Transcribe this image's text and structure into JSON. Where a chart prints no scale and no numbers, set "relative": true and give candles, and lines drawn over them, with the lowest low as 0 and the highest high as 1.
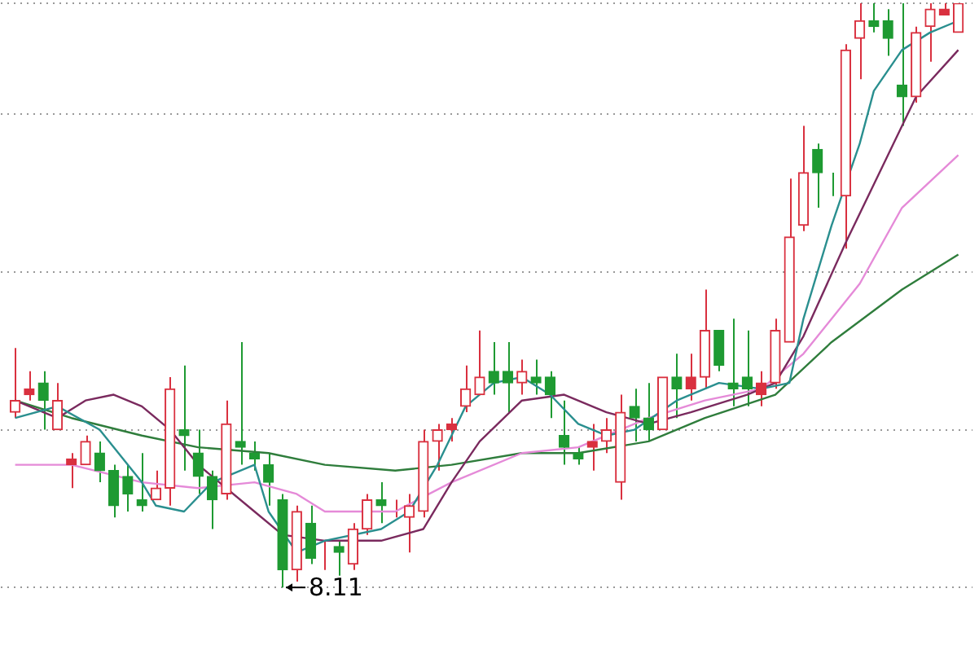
{
  "chart_data": {
    "type": "candlestick",
    "relative": true,
    "legend": false,
    "grid": "y",
    "categories": [
      null,
      null,
      null,
      null,
      null,
      null,
      null,
      null,
      null,
      null,
      null,
      null,
      null,
      null,
      null,
      null,
      null,
      null,
      null,
      null,
      null,
      null,
      null,
      null,
      null,
      null,
      null,
      null,
      null,
      null,
      null,
      null,
      null,
      null,
      null,
      null,
      null,
      null,
      null,
      null,
      null,
      null,
      null,
      null,
      null,
      null,
      null,
      null,
      null,
      null,
      null,
      null,
      null,
      null,
      null,
      null,
      null,
      null,
      null,
      null,
      null,
      null,
      null,
      null,
      null,
      null,
      null,
      null
    ],
    "ohlc": [
      [
        0.3,
        0.41,
        0.29,
        0.32
      ],
      [
        0.33,
        0.37,
        0.32,
        0.34
      ],
      [
        0.35,
        0.37,
        0.27,
        0.32
      ],
      [
        0.27,
        0.35,
        0.27,
        0.32
      ],
      [
        0.21,
        0.23,
        0.17,
        0.22
      ],
      [
        0.21,
        0.26,
        0.21,
        0.25
      ],
      [
        0.23,
        0.25,
        0.18,
        0.2
      ],
      [
        0.2,
        0.21,
        0.12,
        0.14
      ],
      [
        0.19,
        0.21,
        0.13,
        0.16
      ],
      [
        0.15,
        0.23,
        0.13,
        0.14
      ],
      [
        0.15,
        0.2,
        0.15,
        0.17
      ],
      [
        0.17,
        0.36,
        0.14,
        0.34
      ],
      [
        0.27,
        0.38,
        0.2,
        0.26
      ],
      [
        0.23,
        0.27,
        0.16,
        0.19
      ],
      [
        0.19,
        0.2,
        0.1,
        0.15
      ],
      [
        0.16,
        0.32,
        0.15,
        0.28
      ],
      [
        0.25,
        0.42,
        0.21,
        0.24
      ],
      [
        0.23,
        0.25,
        0.2,
        0.22
      ],
      [
        0.21,
        0.23,
        0.14,
        0.18
      ],
      [
        0.15,
        0.16,
        0,
        0.03
      ],
      [
        0.03,
        0.14,
        0.01,
        0.13
      ],
      [
        0.11,
        0.14,
        0.04,
        0.05
      ],
      [
        0.05,
        0.08,
        0.03,
        0.05
      ],
      [
        0.07,
        0.08,
        0.02,
        0.06
      ],
      [
        0.04,
        0.11,
        0.03,
        0.1
      ],
      [
        0.1,
        0.16,
        0.09,
        0.15
      ],
      [
        0.15,
        0.18,
        0.11,
        0.14
      ],
      [
        0.14,
        0.15,
        0.12,
        0.14
      ],
      [
        0.12,
        0.16,
        0.06,
        0.14
      ],
      [
        0.13,
        0.27,
        0.12,
        0.25
      ],
      [
        0.25,
        0.28,
        0.2,
        0.27
      ],
      [
        0.27,
        0.29,
        0.25,
        0.28
      ],
      [
        0.31,
        0.38,
        0.3,
        0.34
      ],
      [
        0.33,
        0.44,
        0.33,
        0.36
      ],
      [
        0.37,
        0.42,
        0.33,
        0.35
      ],
      [
        0.37,
        0.42,
        0.3,
        0.35
      ],
      [
        0.35,
        0.39,
        0.33,
        0.37
      ],
      [
        0.36,
        0.39,
        0.33,
        0.35
      ],
      [
        0.36,
        0.37,
        0.29,
        0.33
      ],
      [
        0.26,
        0.32,
        0.21,
        0.24
      ],
      [
        0.23,
        0.24,
        0.21,
        0.22
      ],
      [
        0.24,
        0.28,
        0.2,
        0.25
      ],
      [
        0.25,
        0.29,
        0.23,
        0.27
      ],
      [
        0.18,
        0.33,
        0.15,
        0.3
      ],
      [
        0.31,
        0.34,
        0.25,
        0.29
      ],
      [
        0.29,
        0.35,
        0.25,
        0.27
      ],
      [
        0.27,
        0.36,
        0.27,
        0.36
      ],
      [
        0.36,
        0.4,
        0.29,
        0.34
      ],
      [
        0.34,
        0.4,
        0.32,
        0.36
      ],
      [
        0.36,
        0.51,
        0.34,
        0.44
      ],
      [
        0.44,
        0.44,
        0.37,
        0.38
      ],
      [
        0.35,
        0.46,
        0.31,
        0.34
      ],
      [
        0.36,
        0.44,
        0.31,
        0.34
      ],
      [
        0.33,
        0.37,
        0.31,
        0.35
      ],
      [
        0.35,
        0.46,
        0.34,
        0.44
      ],
      [
        0.42,
        0.7,
        0.42,
        0.6
      ],
      [
        0.62,
        0.79,
        0.61,
        0.71
      ],
      [
        0.75,
        0.76,
        0.65,
        0.71
      ],
      [
        0.7,
        0.71,
        0.67,
        0.7
      ],
      [
        0.67,
        0.93,
        0.58,
        0.92
      ],
      [
        0.94,
        1,
        0.87,
        0.97
      ],
      [
        0.97,
        1,
        0.95,
        0.96
      ],
      [
        0.97,
        0.99,
        0.91,
        0.94
      ],
      [
        0.86,
        1,
        0.79,
        0.84
      ],
      [
        0.84,
        0.96,
        0.83,
        0.95
      ],
      [
        0.96,
        1,
        0.9,
        0.99
      ],
      [
        0.98,
        1,
        0.98,
        0.99
      ],
      [
        0.95,
        1,
        0.95,
        1
      ]
    ],
    "colors": [
      "#d9303f",
      "#d9303f",
      "#1e9a32",
      "#d9303f",
      "#d9303f",
      "#d9303f",
      "#1e9a32",
      "#1e9a32",
      "#1e9a32",
      "#1e9a32",
      "#d9303f",
      "#d9303f",
      "#1e9a32",
      "#1e9a32",
      "#1e9a32",
      "#d9303f",
      "#1e9a32",
      "#1e9a32",
      "#1e9a32",
      "#1e9a32",
      "#d9303f",
      "#1e9a32",
      "#d9303f",
      "#1e9a32",
      "#d9303f",
      "#d9303f",
      "#1e9a32",
      "#d9303f",
      "#d9303f",
      "#d9303f",
      "#d9303f",
      "#d9303f",
      "#d9303f",
      "#d9303f",
      "#1e9a32",
      "#1e9a32",
      "#d9303f",
      "#1e9a32",
      "#1e9a32",
      "#1e9a32",
      "#1e9a32",
      "#d9303f",
      "#d9303f",
      "#d9303f",
      "#1e9a32",
      "#1e9a32",
      "#d9303f",
      "#1e9a32",
      "#d9303f",
      "#d9303f",
      "#1e9a32",
      "#1e9a32",
      "#1e9a32",
      "#d9303f",
      "#d9303f",
      "#d9303f",
      "#d9303f",
      "#1e9a32",
      "#1e9a32",
      "#d9303f",
      "#d9303f",
      "#1e9a32",
      "#1e9a32",
      "#1e9a32",
      "#d9303f",
      "#d9303f",
      "#d9303f",
      "#d9303f"
    ],
    "series": [
      {
        "type": "line",
        "color": "#2a8f8f",
        "values": [
          0.29,
          null,
          null,
          0.31,
          null,
          null,
          0.27,
          null,
          null,
          0.18,
          0.14,
          null,
          0.13,
          null,
          0.18,
          null,
          null,
          0.21,
          0.13,
          null,
          0.06,
          null,
          0.08,
          null,
          null,
          null,
          0.1,
          null,
          0.13,
          null,
          0.21,
          null,
          0.31,
          null,
          0.35,
          null,
          0.36,
          null,
          0.33,
          null,
          0.28,
          null,
          0.26,
          null,
          0.27,
          null,
          null,
          0.32,
          null,
          null,
          0.35,
          null,
          null,
          0.34,
          null,
          0.35,
          0.46,
          null,
          0.62,
          null,
          0.76,
          0.85,
          null,
          0.92,
          null,
          0.95,
          null,
          0.97
        ]
      },
      {
        "type": "line",
        "color": "#7a2a5e",
        "values": [
          0.32,
          null,
          null,
          0.29,
          null,
          0.32,
          null,
          0.33,
          null,
          0.31,
          null,
          0.27,
          null,
          0.21,
          null,
          null,
          null,
          0.13,
          null,
          0.09,
          null,
          null,
          0.08,
          null,
          null,
          null,
          0.08,
          null,
          null,
          0.1,
          null,
          0.18,
          null,
          0.25,
          null,
          null,
          0.32,
          null,
          null,
          0.33,
          null,
          null,
          0.3,
          null,
          null,
          0.28,
          null,
          null,
          0.3,
          null,
          null,
          null,
          0.33,
          null,
          0.35,
          null,
          0.43,
          null,
          null,
          0.59,
          null,
          null,
          0.74,
          null,
          0.84,
          null,
          null,
          0.92
        ]
      },
      {
        "type": "line",
        "color": "#e58ad8",
        "values": [
          0.21,
          null,
          null,
          null,
          0.21,
          null,
          null,
          null,
          null,
          0.18,
          null,
          null,
          null,
          0.17,
          null,
          null,
          null,
          0.18,
          null,
          null,
          0.16,
          null,
          0.13,
          null,
          null,
          null,
          null,
          0.13,
          null,
          null,
          null,
          0.18,
          null,
          null,
          null,
          null,
          0.23,
          null,
          null,
          null,
          0.24,
          null,
          null,
          null,
          null,
          0.29,
          null,
          null,
          null,
          0.32,
          null,
          null,
          null,
          0.34,
          null,
          null,
          0.4,
          null,
          null,
          null,
          0.52,
          null,
          null,
          0.65,
          null,
          null,
          null,
          0.74
        ]
      },
      {
        "type": "line",
        "color": "#2f7d3c",
        "values": [
          0.32,
          null,
          null,
          null,
          0.29,
          null,
          null,
          null,
          null,
          0.26,
          null,
          null,
          null,
          0.24,
          null,
          null,
          null,
          null,
          0.23,
          null,
          null,
          null,
          0.21,
          null,
          null,
          null,
          null,
          0.2,
          null,
          null,
          null,
          0.21,
          null,
          null,
          null,
          null,
          0.23,
          null,
          null,
          null,
          0.23,
          null,
          null,
          null,
          null,
          0.25,
          null,
          null,
          null,
          0.29,
          null,
          null,
          null,
          null,
          0.33,
          null,
          null,
          null,
          0.42,
          null,
          null,
          null,
          null,
          0.51,
          null,
          null,
          null,
          0.57
        ]
      }
    ],
    "annotations": [
      "8.11"
    ]
  }
}
